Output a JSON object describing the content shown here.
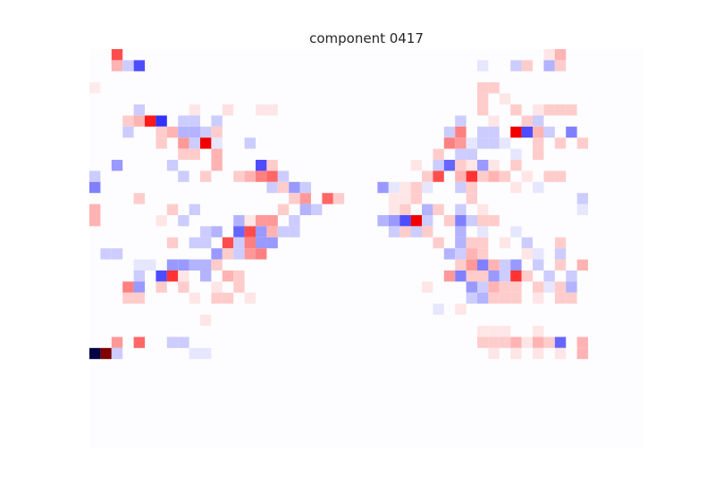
{
  "chart_data": {
    "type": "heatmap",
    "title": "component 0417",
    "xlabel": "",
    "ylabel": "",
    "n_rows": 35,
    "n_cols": 50,
    "colormap": "seismic",
    "value_range": [
      -1,
      1
    ],
    "colors": {
      "negative": "#0000ff",
      "neutral": "#ffffff",
      "positive": "#ff0000",
      "extreme_negative": "#000044",
      "extreme_positive": "#7f0000"
    },
    "axes_visible": false,
    "grid": false,
    "cells": [
      [
        0,
        2,
        0.35
      ],
      [
        1,
        2,
        0.15
      ],
      [
        1,
        4,
        -0.35
      ],
      [
        1,
        3,
        -0.1
      ],
      [
        3,
        0,
        0.04
      ],
      [
        5,
        4,
        -0.1
      ],
      [
        5,
        9,
        0.05
      ],
      [
        5,
        12,
        0.06
      ],
      [
        5,
        15,
        0.05
      ],
      [
        5,
        16,
        0.05
      ],
      [
        6,
        3,
        0.1
      ],
      [
        6,
        4,
        0.15
      ],
      [
        6,
        5,
        0.45
      ],
      [
        6,
        6,
        -0.4
      ],
      [
        6,
        8,
        -0.1
      ],
      [
        6,
        9,
        -0.1
      ],
      [
        6,
        11,
        -0.1
      ],
      [
        7,
        3,
        -0.1
      ],
      [
        7,
        6,
        0.1
      ],
      [
        7,
        7,
        0.15
      ],
      [
        7,
        8,
        -0.15
      ],
      [
        7,
        9,
        -0.15
      ],
      [
        7,
        10,
        -0.1
      ],
      [
        7,
        11,
        0.1
      ],
      [
        8,
        6,
        0.1
      ],
      [
        8,
        8,
        0.2
      ],
      [
        8,
        9,
        -0.1
      ],
      [
        8,
        10,
        0.55
      ],
      [
        8,
        11,
        -0.05
      ],
      [
        8,
        14,
        -0.1
      ],
      [
        9,
        8,
        0.1
      ],
      [
        9,
        9,
        0.1
      ],
      [
        9,
        11,
        0.15
      ],
      [
        10,
        2,
        -0.2
      ],
      [
        10,
        7,
        -0.1
      ],
      [
        10,
        11,
        0.15
      ],
      [
        10,
        15,
        -0.35
      ],
      [
        10,
        16,
        0.1
      ],
      [
        11,
        0,
        -0.1
      ],
      [
        11,
        8,
        -0.1
      ],
      [
        11,
        10,
        0.1
      ],
      [
        11,
        13,
        0.1
      ],
      [
        11,
        14,
        0.15
      ],
      [
        11,
        15,
        0.25
      ],
      [
        11,
        16,
        0.3
      ],
      [
        11,
        17,
        -0.1
      ],
      [
        12,
        0,
        -0.25
      ],
      [
        12,
        16,
        -0.1
      ],
      [
        12,
        17,
        0.1
      ],
      [
        12,
        18,
        -0.2
      ],
      [
        12,
        19,
        -0.1
      ],
      [
        13,
        4,
        0.1
      ],
      [
        13,
        18,
        0.1
      ],
      [
        13,
        19,
        0.2
      ],
      [
        13,
        21,
        0.3
      ],
      [
        13,
        22,
        0.1
      ],
      [
        14,
        0,
        0.15
      ],
      [
        14,
        7,
        0.1
      ],
      [
        14,
        9,
        -0.1
      ],
      [
        14,
        17,
        0.1
      ],
      [
        14,
        19,
        -0.15
      ],
      [
        14,
        20,
        -0.1
      ],
      [
        15,
        0,
        0.15
      ],
      [
        15,
        6,
        0.05
      ],
      [
        15,
        8,
        -0.1
      ],
      [
        15,
        13,
        -0.15
      ],
      [
        15,
        14,
        0.05
      ],
      [
        15,
        15,
        0.2
      ],
      [
        15,
        16,
        0.2
      ],
      [
        15,
        18,
        -0.1
      ],
      [
        16,
        10,
        -0.1
      ],
      [
        16,
        11,
        -0.15
      ],
      [
        16,
        13,
        -0.3
      ],
      [
        16,
        14,
        0.35
      ],
      [
        16,
        15,
        -0.2
      ],
      [
        16,
        16,
        0.15
      ],
      [
        16,
        17,
        -0.1
      ],
      [
        16,
        18,
        -0.1
      ],
      [
        17,
        7,
        0.1
      ],
      [
        17,
        9,
        -0.1
      ],
      [
        17,
        10,
        -0.1
      ],
      [
        17,
        12,
        0.35
      ],
      [
        17,
        13,
        -0.1
      ],
      [
        17,
        14,
        0.25
      ],
      [
        17,
        15,
        -0.2
      ],
      [
        17,
        16,
        -0.2
      ],
      [
        18,
        1,
        -0.1
      ],
      [
        18,
        2,
        -0.1
      ],
      [
        18,
        11,
        -0.2
      ],
      [
        18,
        12,
        0.1
      ],
      [
        18,
        13,
        -0.1
      ],
      [
        18,
        14,
        0.2
      ],
      [
        18,
        15,
        0.25
      ],
      [
        19,
        4,
        -0.05
      ],
      [
        19,
        5,
        -0.05
      ],
      [
        19,
        7,
        -0.2
      ],
      [
        19,
        8,
        -0.2
      ],
      [
        19,
        9,
        -0.15
      ],
      [
        19,
        10,
        -0.15
      ],
      [
        19,
        11,
        0.1
      ],
      [
        20,
        4,
        -0.1
      ],
      [
        20,
        6,
        -0.35
      ],
      [
        20,
        7,
        0.4
      ],
      [
        20,
        8,
        0.05
      ],
      [
        20,
        10,
        -0.15
      ],
      [
        20,
        12,
        0.15
      ],
      [
        20,
        13,
        0.1
      ],
      [
        21,
        3,
        0.25
      ],
      [
        21,
        4,
        -0.2
      ],
      [
        21,
        6,
        0.1
      ],
      [
        21,
        8,
        0.1
      ],
      [
        21,
        11,
        0.05
      ],
      [
        21,
        13,
        0.1
      ],
      [
        22,
        3,
        0.1
      ],
      [
        22,
        4,
        0.1
      ],
      [
        22,
        9,
        0.05
      ],
      [
        22,
        11,
        0.1
      ],
      [
        22,
        12,
        0.1
      ],
      [
        22,
        14,
        0.05
      ],
      [
        24,
        10,
        0.05
      ],
      [
        26,
        2,
        0.2
      ],
      [
        26,
        4,
        0.3
      ],
      [
        26,
        7,
        -0.1
      ],
      [
        26,
        8,
        -0.1
      ],
      [
        27,
        0,
        -1.0
      ],
      [
        27,
        1,
        1.0
      ],
      [
        27,
        2,
        -0.1
      ],
      [
        27,
        9,
        -0.05
      ],
      [
        27,
        10,
        -0.05
      ],
      [
        0,
        41,
        0.05
      ],
      [
        0,
        42,
        0.15
      ],
      [
        1,
        35,
        -0.05
      ],
      [
        1,
        38,
        -0.1
      ],
      [
        1,
        39,
        0.1
      ],
      [
        1,
        41,
        -0.15
      ],
      [
        1,
        42,
        0.1
      ],
      [
        3,
        35,
        0.1
      ],
      [
        3,
        36,
        0.1
      ],
      [
        4,
        35,
        0.1
      ],
      [
        4,
        37,
        0.05
      ],
      [
        5,
        35,
        0.1
      ],
      [
        5,
        38,
        0.1
      ],
      [
        5,
        40,
        0.05
      ],
      [
        5,
        41,
        0.1
      ],
      [
        5,
        42,
        0.1
      ],
      [
        5,
        43,
        0.1
      ],
      [
        6,
        33,
        -0.1
      ],
      [
        6,
        36,
        0.05
      ],
      [
        6,
        39,
        0.1
      ],
      [
        6,
        40,
        -0.1
      ],
      [
        7,
        32,
        -0.1
      ],
      [
        7,
        33,
        0.25
      ],
      [
        7,
        35,
        -0.1
      ],
      [
        7,
        36,
        -0.1
      ],
      [
        7,
        38,
        0.55
      ],
      [
        7,
        39,
        -0.35
      ],
      [
        7,
        40,
        0.15
      ],
      [
        7,
        41,
        -0.1
      ],
      [
        7,
        43,
        -0.25
      ],
      [
        8,
        32,
        0.25
      ],
      [
        8,
        33,
        0.2
      ],
      [
        8,
        34,
        -0.05
      ],
      [
        8,
        35,
        -0.1
      ],
      [
        8,
        36,
        -0.1
      ],
      [
        8,
        37,
        -0.05
      ],
      [
        8,
        40,
        0.1
      ],
      [
        8,
        42,
        0.1
      ],
      [
        8,
        44,
        0.1
      ],
      [
        9,
        31,
        0.1
      ],
      [
        9,
        33,
        -0.1
      ],
      [
        9,
        34,
        -0.1
      ],
      [
        9,
        38,
        -0.05
      ],
      [
        9,
        40,
        0.1
      ],
      [
        10,
        29,
        0.05
      ],
      [
        10,
        31,
        -0.1
      ],
      [
        10,
        32,
        -0.3
      ],
      [
        10,
        33,
        0.1
      ],
      [
        10,
        34,
        0.05
      ],
      [
        10,
        35,
        -0.2
      ],
      [
        10,
        36,
        0.05
      ],
      [
        10,
        38,
        0.1
      ],
      [
        11,
        30,
        0.1
      ],
      [
        11,
        31,
        0.35
      ],
      [
        11,
        33,
        0.15
      ],
      [
        11,
        34,
        0.4
      ],
      [
        11,
        35,
        0.1
      ],
      [
        11,
        36,
        0.15
      ],
      [
        11,
        37,
        0.1
      ],
      [
        11,
        39,
        0.05
      ],
      [
        11,
        41,
        0.1
      ],
      [
        11,
        42,
        0.1
      ],
      [
        12,
        26,
        -0.2
      ],
      [
        12,
        27,
        -0.05
      ],
      [
        12,
        28,
        0.05
      ],
      [
        12,
        29,
        0.1
      ],
      [
        12,
        30,
        -0.05
      ],
      [
        12,
        33,
        -0.1
      ],
      [
        12,
        34,
        0.1
      ],
      [
        12,
        38,
        0.05
      ],
      [
        12,
        40,
        -0.05
      ],
      [
        13,
        27,
        0.05
      ],
      [
        13,
        28,
        0.05
      ],
      [
        13,
        29,
        0.1
      ],
      [
        13,
        34,
        0.1
      ],
      [
        13,
        44,
        -0.1
      ],
      [
        14,
        27,
        0.05
      ],
      [
        14,
        28,
        0.1
      ],
      [
        14,
        30,
        -0.15
      ],
      [
        14,
        31,
        0.1
      ],
      [
        14,
        33,
        -0.1
      ],
      [
        14,
        35,
        0.05
      ],
      [
        14,
        44,
        -0.05
      ],
      [
        15,
        26,
        -0.15
      ],
      [
        15,
        27,
        -0.2
      ],
      [
        15,
        28,
        -0.35
      ],
      [
        15,
        29,
        0.55
      ],
      [
        15,
        30,
        -0.1
      ],
      [
        15,
        32,
        0.1
      ],
      [
        15,
        33,
        -0.25
      ],
      [
        15,
        34,
        -0.1
      ],
      [
        15,
        35,
        0.1
      ],
      [
        15,
        36,
        0.1
      ],
      [
        16,
        27,
        -0.1
      ],
      [
        16,
        28,
        0.1
      ],
      [
        16,
        29,
        -0.1
      ],
      [
        16,
        30,
        0.1
      ],
      [
        16,
        33,
        -0.15
      ],
      [
        16,
        35,
        -0.05
      ],
      [
        16,
        38,
        -0.05
      ],
      [
        17,
        31,
        0.1
      ],
      [
        17,
        33,
        -0.15
      ],
      [
        17,
        34,
        0.1
      ],
      [
        17,
        35,
        0.1
      ],
      [
        17,
        37,
        0.05
      ],
      [
        17,
        39,
        -0.1
      ],
      [
        17,
        42,
        0.1
      ],
      [
        18,
        32,
        -0.15
      ],
      [
        18,
        33,
        -0.1
      ],
      [
        18,
        34,
        0.15
      ],
      [
        18,
        35,
        0.1
      ],
      [
        18,
        39,
        0.05
      ],
      [
        18,
        40,
        -0.05
      ],
      [
        18,
        42,
        -0.1
      ],
      [
        19,
        33,
        0.1
      ],
      [
        19,
        34,
        0.2
      ],
      [
        19,
        35,
        -0.25
      ],
      [
        19,
        36,
        0.15
      ],
      [
        19,
        37,
        -0.1
      ],
      [
        19,
        38,
        -0.2
      ],
      [
        19,
        40,
        -0.1
      ],
      [
        19,
        42,
        0.1
      ],
      [
        19,
        44,
        0.15
      ],
      [
        20,
        32,
        0.2
      ],
      [
        20,
        33,
        -0.25
      ],
      [
        20,
        34,
        0.1
      ],
      [
        20,
        35,
        0.1
      ],
      [
        20,
        36,
        -0.2
      ],
      [
        20,
        37,
        -0.1
      ],
      [
        20,
        38,
        0.4
      ],
      [
        20,
        39,
        0.1
      ],
      [
        20,
        41,
        -0.1
      ],
      [
        20,
        43,
        -0.1
      ],
      [
        21,
        30,
        0.05
      ],
      [
        21,
        34,
        -0.2
      ],
      [
        21,
        35,
        -0.1
      ],
      [
        21,
        36,
        0.15
      ],
      [
        21,
        37,
        0.1
      ],
      [
        21,
        38,
        0.1
      ],
      [
        21,
        40,
        0.1
      ],
      [
        21,
        41,
        -0.05
      ],
      [
        21,
        42,
        0.1
      ],
      [
        21,
        43,
        -0.15
      ],
      [
        22,
        34,
        -0.1
      ],
      [
        22,
        35,
        -0.15
      ],
      [
        22,
        36,
        0.1
      ],
      [
        22,
        37,
        0.1
      ],
      [
        22,
        38,
        0.1
      ],
      [
        22,
        40,
        0.05
      ],
      [
        22,
        42,
        0.1
      ],
      [
        22,
        43,
        0.1
      ],
      [
        23,
        31,
        -0.05
      ],
      [
        23,
        33,
        0.05
      ],
      [
        25,
        35,
        0.05
      ],
      [
        25,
        36,
        0.05
      ],
      [
        25,
        37,
        0.05
      ],
      [
        25,
        40,
        0.05
      ],
      [
        26,
        35,
        0.1
      ],
      [
        26,
        36,
        0.1
      ],
      [
        26,
        37,
        0.1
      ],
      [
        26,
        38,
        0.15
      ],
      [
        26,
        39,
        0.05
      ],
      [
        26,
        40,
        0.15
      ],
      [
        26,
        41,
        0.1
      ],
      [
        26,
        42,
        -0.3
      ],
      [
        26,
        44,
        0.15
      ],
      [
        27,
        36,
        0.05
      ],
      [
        27,
        38,
        0.05
      ],
      [
        27,
        40,
        0.05
      ],
      [
        27,
        42,
        0.05
      ],
      [
        27,
        44,
        0.15
      ]
    ]
  }
}
